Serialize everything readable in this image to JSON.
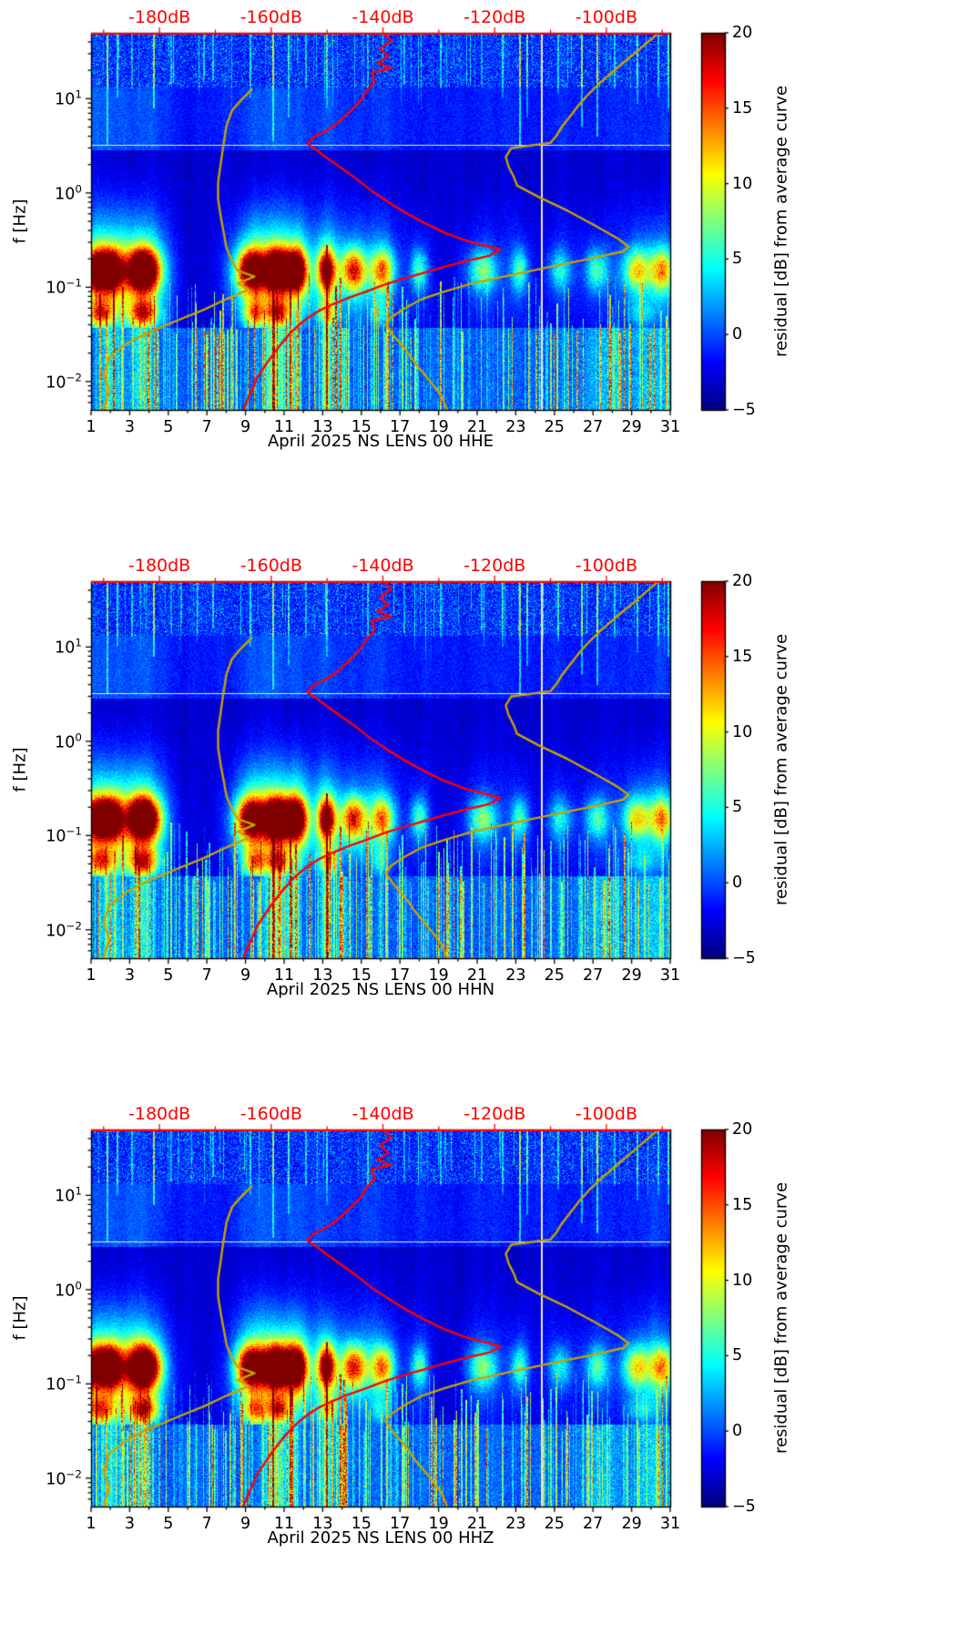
{
  "figure": {
    "background": "#ffffff"
  },
  "shared": {
    "colormap": "jet",
    "accent_red": "#ff0000",
    "olive": "#c8a200",
    "db_axis": {
      "db_ref": -180,
      "day_at_db_ref": 4.543,
      "days_per_db": 0.28937
    },
    "day_range": [
      1,
      31
    ],
    "f_range_hz": [
      0.005,
      50
    ],
    "curves": [
      {
        "name": "average-psd-curve-red",
        "color": "#ff0000",
        "points_db_f": [
          [
            -140,
            50
          ],
          [
            -138.5,
            41
          ],
          [
            -140.5,
            34
          ],
          [
            -139,
            28
          ],
          [
            -141,
            24
          ],
          [
            -138.5,
            21
          ],
          [
            -142,
            19
          ],
          [
            -141.5,
            15
          ],
          [
            -143,
            12
          ],
          [
            -144,
            9.5
          ],
          [
            -146,
            7.2
          ],
          [
            -148,
            5.6
          ],
          [
            -150,
            4.6
          ],
          [
            -152.5,
            3.9
          ],
          [
            -153.5,
            3.3
          ],
          [
            -152,
            2.9
          ],
          [
            -150,
            2.35
          ],
          [
            -147.5,
            1.85
          ],
          [
            -145,
            1.45
          ],
          [
            -142,
            1.05
          ],
          [
            -139,
            0.8
          ],
          [
            -136,
            0.62
          ],
          [
            -132.5,
            0.48
          ],
          [
            -129,
            0.38
          ],
          [
            -125,
            0.31
          ],
          [
            -121,
            0.27
          ],
          [
            -119,
            0.25
          ],
          [
            -121,
            0.215
          ],
          [
            -125,
            0.19
          ],
          [
            -129,
            0.165
          ],
          [
            -133,
            0.14
          ],
          [
            -137,
            0.12
          ],
          [
            -140,
            0.105
          ],
          [
            -143,
            0.09
          ],
          [
            -146,
            0.078
          ],
          [
            -149,
            0.066
          ],
          [
            -151.5,
            0.056
          ],
          [
            -153.5,
            0.047
          ],
          [
            -155,
            0.04
          ],
          [
            -156.5,
            0.033
          ],
          [
            -158,
            0.026
          ],
          [
            -159.5,
            0.02
          ],
          [
            -161,
            0.015
          ],
          [
            -162.5,
            0.011
          ],
          [
            -163.5,
            0.008
          ],
          [
            -164.5,
            0.006
          ],
          [
            -165,
            0.005
          ]
        ]
      },
      {
        "name": "reference-curve-olive-lower",
        "color": "#c8a200",
        "points_db_f": [
          [
            -190,
            0.005
          ],
          [
            -189,
            0.008
          ],
          [
            -190,
            0.012
          ],
          [
            -189,
            0.018
          ],
          [
            -186,
            0.025
          ],
          [
            -182,
            0.033
          ],
          [
            -177,
            0.044
          ],
          [
            -172,
            0.058
          ],
          [
            -168,
            0.075
          ],
          [
            -164,
            0.095
          ],
          [
            -166,
            0.11
          ],
          [
            -163,
            0.13
          ],
          [
            -166,
            0.15
          ],
          [
            -167,
            0.19
          ],
          [
            -168,
            0.26
          ],
          [
            -168.5,
            0.38
          ],
          [
            -169,
            0.55
          ],
          [
            -169.5,
            0.85
          ],
          [
            -169.5,
            1.3
          ],
          [
            -169,
            2.1
          ],
          [
            -168.5,
            3.4
          ],
          [
            -168,
            5.2
          ],
          [
            -167,
            7.5
          ],
          [
            -165.5,
            9.5
          ],
          [
            -163.5,
            12.5
          ]
        ]
      },
      {
        "name": "reference-curve-olive-upper",
        "color": "#c8a200",
        "points_db_f": [
          [
            -91,
            48
          ],
          [
            -93,
            38
          ],
          [
            -95,
            30
          ],
          [
            -97,
            24
          ],
          [
            -99,
            19
          ],
          [
            -101,
            15
          ],
          [
            -103,
            11.5
          ],
          [
            -105,
            8.5
          ],
          [
            -106.5,
            6.5
          ],
          [
            -108,
            5
          ],
          [
            -109,
            4
          ],
          [
            -110,
            3.4
          ],
          [
            -117,
            3.0
          ],
          [
            -118,
            2.4
          ],
          [
            -117.5,
            1.9
          ],
          [
            -116.5,
            1.45
          ],
          [
            -116,
            1.2
          ],
          [
            -112,
            0.9
          ],
          [
            -107,
            0.65
          ],
          [
            -102,
            0.45
          ],
          [
            -98,
            0.33
          ],
          [
            -96,
            0.27
          ],
          [
            -97,
            0.24
          ],
          [
            -103,
            0.2
          ],
          [
            -110,
            0.165
          ],
          [
            -117,
            0.135
          ],
          [
            -124,
            0.11
          ],
          [
            -129,
            0.09
          ],
          [
            -133,
            0.075
          ],
          [
            -136,
            0.06
          ],
          [
            -138.5,
            0.048
          ],
          [
            -139.5,
            0.04
          ],
          [
            -138,
            0.03
          ],
          [
            -136,
            0.022
          ],
          [
            -134,
            0.015
          ],
          [
            -131.5,
            0.01
          ],
          [
            -129.5,
            0.007
          ],
          [
            -128.5,
            0.005
          ]
        ]
      }
    ]
  },
  "chart_data": [
    {
      "type": "heatmap",
      "title": "",
      "xlabel": "April 2025 NS LENS 00 HHE",
      "ylabel": "f [Hz]",
      "x_ticks": [
        1,
        3,
        5,
        7,
        9,
        11,
        13,
        15,
        17,
        19,
        21,
        23,
        25,
        27,
        29,
        31
      ],
      "y_ticks_exp": [
        1,
        0,
        -1,
        -2
      ],
      "top_db_ticks": [
        {
          "label": "-180dB",
          "db": -180
        },
        {
          "label": "-160dB",
          "db": -160
        },
        {
          "label": "-140dB",
          "db": -140
        },
        {
          "label": "-120dB",
          "db": -120
        },
        {
          "label": "-100dB",
          "db": -100
        }
      ],
      "colorbar": {
        "label": "residual [dB] from average curve",
        "min": -5,
        "max": 20,
        "ticks": [
          20,
          15,
          10,
          5,
          0,
          -5
        ]
      },
      "x_scale": "linear",
      "y_scale": "log",
      "xlim": [
        1,
        31
      ],
      "ylim": [
        0.005,
        50
      ],
      "seed": 11
    },
    {
      "type": "heatmap",
      "title": "",
      "xlabel": "April 2025 NS LENS 00 HHN",
      "ylabel": "f [Hz]",
      "x_ticks": [
        1,
        3,
        5,
        7,
        9,
        11,
        13,
        15,
        17,
        19,
        21,
        23,
        25,
        27,
        29,
        31
      ],
      "y_ticks_exp": [
        1,
        0,
        -1,
        -2
      ],
      "top_db_ticks": [
        {
          "label": "-180dB",
          "db": -180
        },
        {
          "label": "-160dB",
          "db": -160
        },
        {
          "label": "-140dB",
          "db": -140
        },
        {
          "label": "-120dB",
          "db": -120
        },
        {
          "label": "-100dB",
          "db": -100
        }
      ],
      "colorbar": {
        "label": "residual [dB] from average curve",
        "min": -5,
        "max": 20,
        "ticks": [
          20,
          15,
          10,
          5,
          0,
          -5
        ]
      },
      "x_scale": "linear",
      "y_scale": "log",
      "xlim": [
        1,
        31
      ],
      "ylim": [
        0.005,
        50
      ],
      "seed": 12
    },
    {
      "type": "heatmap",
      "title": "",
      "xlabel": "April 2025 NS LENS 00 HHZ",
      "ylabel": "f [Hz]",
      "x_ticks": [
        1,
        3,
        5,
        7,
        9,
        11,
        13,
        15,
        17,
        19,
        21,
        23,
        25,
        27,
        29,
        31
      ],
      "y_ticks_exp": [
        1,
        0,
        -1,
        -2
      ],
      "top_db_ticks": [
        {
          "label": "-180dB",
          "db": -180
        },
        {
          "label": "-160dB",
          "db": -160
        },
        {
          "label": "-140dB",
          "db": -140
        },
        {
          "label": "-120dB",
          "db": -120
        },
        {
          "label": "-100dB",
          "db": -100
        }
      ],
      "colorbar": {
        "label": "residual [dB] from average curve",
        "min": -5,
        "max": 20,
        "ticks": [
          20,
          15,
          10,
          5,
          0,
          -5
        ]
      },
      "x_scale": "linear",
      "y_scale": "log",
      "xlim": [
        1,
        31
      ],
      "ylim": [
        0.005,
        50
      ],
      "seed": 13
    }
  ]
}
